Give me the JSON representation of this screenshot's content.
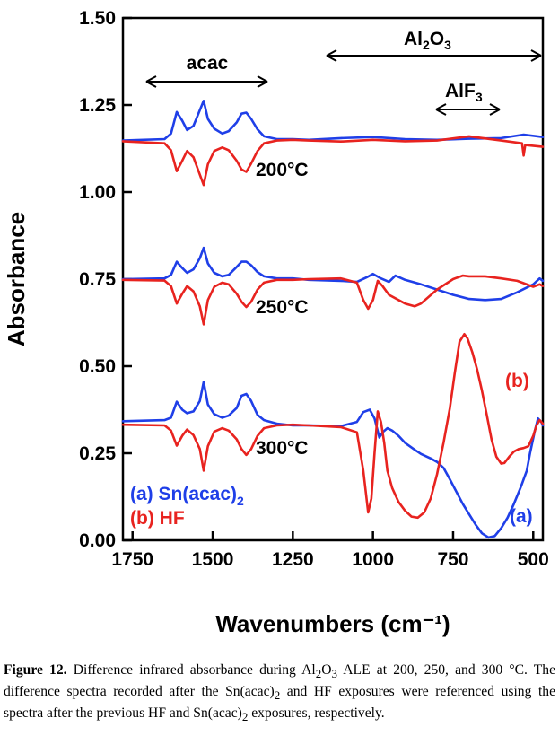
{
  "chart_data": {
    "type": "line",
    "xlabel": "Wavenumbers (cm⁻¹)",
    "ylabel": "Absorbance",
    "xlim": [
      1780,
      470
    ],
    "ylim": [
      0.0,
      1.5
    ],
    "x_ticks": [
      1750,
      1500,
      1250,
      1000,
      750,
      500
    ],
    "x_tick_labels": [
      "1750",
      "1500",
      "1250",
      "1000",
      "750",
      "500"
    ],
    "y_ticks": [
      0.0,
      0.25,
      0.5,
      0.75,
      1.0,
      1.25,
      1.5
    ],
    "y_tick_labels": [
      "0.00",
      "0.25",
      "0.50",
      "0.75",
      "1.00",
      "1.25",
      "1.50"
    ],
    "region_annotations": [
      {
        "label": "acac",
        "from": 1745,
        "to": 1305
      },
      {
        "label_main": "Al",
        "label_sub1": "2",
        "label_mid": "O",
        "label_sub2": "3",
        "from": 1140,
        "to": 470
      },
      {
        "label_main": "AlF",
        "label_sub": "3",
        "from": 800,
        "to": 610
      }
    ],
    "temperature_labels": [
      {
        "text": "200°C",
        "x": 1310,
        "y": 1.1
      },
      {
        "text": "250°C",
        "x": 1310,
        "y": 0.7
      },
      {
        "text": "300°C",
        "x": 1310,
        "y": 0.29
      }
    ],
    "legend": [
      {
        "label": "(a) Sn(acac)",
        "sub": "2",
        "color": "#1f3fe8"
      },
      {
        "label": "(b) HF",
        "sub": "",
        "color": "#e8231f"
      }
    ],
    "curve_labels": [
      {
        "text": "(b)",
        "x": 545,
        "y": 0.47,
        "color": "#e8231f"
      },
      {
        "text": "(a)",
        "x": 575,
        "y": 0.06,
        "color": "#1f3fe8"
      }
    ],
    "series": [
      {
        "name": "200°C Sn(acac)2",
        "color": "#1f3fe8",
        "x": [
          1780,
          1650,
          1630,
          1612,
          1595,
          1580,
          1560,
          1540,
          1528,
          1515,
          1495,
          1470,
          1450,
          1425,
          1410,
          1395,
          1380,
          1360,
          1340,
          1300,
          1250,
          1200,
          1100,
          1000,
          900,
          800,
          700,
          600,
          530,
          470
        ],
        "values": [
          1.148,
          1.152,
          1.168,
          1.23,
          1.205,
          1.178,
          1.19,
          1.235,
          1.262,
          1.21,
          1.182,
          1.168,
          1.175,
          1.2,
          1.225,
          1.228,
          1.21,
          1.18,
          1.16,
          1.152,
          1.152,
          1.15,
          1.155,
          1.158,
          1.152,
          1.15,
          1.153,
          1.155,
          1.165,
          1.158
        ]
      },
      {
        "name": "200°C HF",
        "color": "#e8231f",
        "x": [
          1780,
          1650,
          1630,
          1612,
          1595,
          1580,
          1560,
          1540,
          1528,
          1515,
          1495,
          1470,
          1450,
          1425,
          1410,
          1395,
          1380,
          1360,
          1340,
          1300,
          1250,
          1200,
          1100,
          1000,
          900,
          800,
          700,
          600,
          535,
          530,
          525,
          470
        ],
        "values": [
          1.146,
          1.14,
          1.12,
          1.06,
          1.09,
          1.118,
          1.1,
          1.05,
          1.02,
          1.08,
          1.118,
          1.128,
          1.12,
          1.09,
          1.065,
          1.058,
          1.082,
          1.118,
          1.14,
          1.148,
          1.15,
          1.148,
          1.145,
          1.15,
          1.146,
          1.148,
          1.16,
          1.148,
          1.14,
          1.105,
          1.135,
          1.13
        ]
      },
      {
        "name": "250°C Sn(acac)2",
        "color": "#1f3fe8",
        "x": [
          1780,
          1650,
          1630,
          1612,
          1595,
          1580,
          1560,
          1540,
          1528,
          1515,
          1495,
          1470,
          1450,
          1425,
          1410,
          1395,
          1380,
          1360,
          1340,
          1300,
          1250,
          1200,
          1100,
          1050,
          1020,
          1000,
          975,
          950,
          930,
          900,
          850,
          800,
          750,
          700,
          650,
          600,
          550,
          500,
          480,
          470
        ],
        "values": [
          0.75,
          0.752,
          0.762,
          0.8,
          0.782,
          0.768,
          0.778,
          0.81,
          0.84,
          0.795,
          0.768,
          0.758,
          0.762,
          0.785,
          0.8,
          0.8,
          0.79,
          0.77,
          0.758,
          0.752,
          0.752,
          0.748,
          0.745,
          0.742,
          0.755,
          0.765,
          0.752,
          0.742,
          0.76,
          0.748,
          0.735,
          0.72,
          0.705,
          0.693,
          0.69,
          0.693,
          0.712,
          0.735,
          0.752,
          0.745
        ]
      },
      {
        "name": "250°C HF",
        "color": "#e8231f",
        "x": [
          1780,
          1650,
          1630,
          1612,
          1595,
          1580,
          1560,
          1540,
          1528,
          1515,
          1495,
          1470,
          1450,
          1425,
          1410,
          1395,
          1380,
          1360,
          1340,
          1300,
          1250,
          1200,
          1100,
          1050,
          1030,
          1015,
          1000,
          985,
          970,
          950,
          900,
          870,
          850,
          800,
          750,
          720,
          700,
          650,
          600,
          550,
          500,
          480,
          470
        ],
        "values": [
          0.748,
          0.746,
          0.73,
          0.68,
          0.708,
          0.73,
          0.715,
          0.672,
          0.62,
          0.69,
          0.728,
          0.74,
          0.735,
          0.708,
          0.685,
          0.67,
          0.685,
          0.72,
          0.74,
          0.748,
          0.748,
          0.75,
          0.752,
          0.74,
          0.69,
          0.665,
          0.69,
          0.745,
          0.73,
          0.705,
          0.68,
          0.672,
          0.68,
          0.72,
          0.75,
          0.76,
          0.758,
          0.758,
          0.752,
          0.745,
          0.728,
          0.735,
          0.73
        ]
      },
      {
        "name": "300°C Sn(acac)2",
        "color": "#1f3fe8",
        "x": [
          1780,
          1650,
          1630,
          1612,
          1595,
          1580,
          1560,
          1540,
          1528,
          1515,
          1495,
          1470,
          1450,
          1425,
          1410,
          1395,
          1380,
          1360,
          1340,
          1300,
          1250,
          1200,
          1100,
          1050,
          1030,
          1010,
          995,
          980,
          970,
          955,
          940,
          920,
          900,
          870,
          850,
          820,
          800,
          780,
          760,
          740,
          720,
          700,
          680,
          660,
          640,
          620,
          600,
          580,
          560,
          540,
          520,
          510,
          495,
          485,
          475,
          470
        ],
        "values": [
          0.342,
          0.345,
          0.352,
          0.398,
          0.375,
          0.365,
          0.37,
          0.4,
          0.455,
          0.39,
          0.362,
          0.352,
          0.358,
          0.38,
          0.415,
          0.42,
          0.4,
          0.36,
          0.345,
          0.335,
          0.33,
          0.33,
          0.328,
          0.34,
          0.368,
          0.375,
          0.35,
          0.295,
          0.31,
          0.322,
          0.315,
          0.3,
          0.28,
          0.26,
          0.248,
          0.235,
          0.225,
          0.208,
          0.175,
          0.14,
          0.105,
          0.075,
          0.045,
          0.02,
          0.008,
          0.012,
          0.035,
          0.065,
          0.105,
          0.15,
          0.2,
          0.25,
          0.315,
          0.35,
          0.34,
          0.33
        ]
      },
      {
        "name": "300°C HF",
        "color": "#e8231f",
        "x": [
          1780,
          1650,
          1630,
          1612,
          1595,
          1580,
          1560,
          1540,
          1528,
          1515,
          1495,
          1470,
          1450,
          1425,
          1410,
          1395,
          1380,
          1360,
          1340,
          1300,
          1250,
          1200,
          1100,
          1050,
          1030,
          1015,
          1005,
          995,
          985,
          975,
          965,
          955,
          940,
          920,
          900,
          880,
          860,
          840,
          820,
          800,
          780,
          760,
          745,
          730,
          715,
          705,
          690,
          675,
          660,
          645,
          630,
          615,
          600,
          590,
          575,
          560,
          545,
          530,
          515,
          500,
          490,
          480,
          470
        ],
        "values": [
          0.332,
          0.33,
          0.315,
          0.272,
          0.3,
          0.318,
          0.302,
          0.262,
          0.2,
          0.27,
          0.312,
          0.322,
          0.315,
          0.29,
          0.262,
          0.245,
          0.262,
          0.3,
          0.322,
          0.33,
          0.332,
          0.33,
          0.325,
          0.31,
          0.2,
          0.08,
          0.12,
          0.25,
          0.37,
          0.34,
          0.28,
          0.2,
          0.15,
          0.11,
          0.085,
          0.068,
          0.065,
          0.08,
          0.12,
          0.19,
          0.28,
          0.38,
          0.48,
          0.57,
          0.592,
          0.58,
          0.54,
          0.49,
          0.43,
          0.36,
          0.29,
          0.24,
          0.22,
          0.222,
          0.24,
          0.255,
          0.262,
          0.265,
          0.27,
          0.3,
          0.33,
          0.345,
          0.335
        ]
      }
    ]
  },
  "caption": {
    "label": "Figure 12.",
    "t1": " Difference infrared absorbance during Al",
    "s1": "2",
    "t2": "O",
    "s2": "3",
    "t3": " ALE at 200, 250, and 300 °C. The difference spectra recorded after the Sn(acac)",
    "s3": "2",
    "t4": " and HF exposures were referenced using the spectra after the previous HF and Sn(acac)",
    "s4": "2",
    "t5": " exposures, respectively."
  }
}
